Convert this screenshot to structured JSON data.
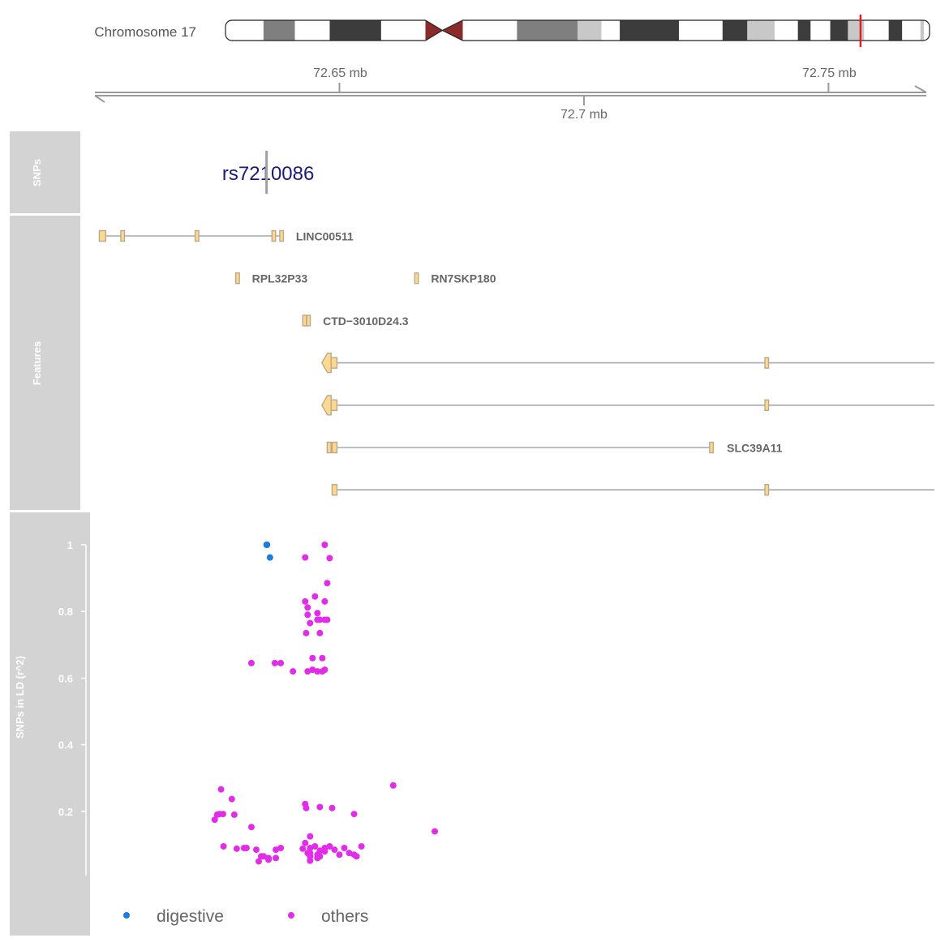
{
  "ideogram": {
    "label": "Chromosome 17",
    "bands": [
      {
        "from": 0,
        "to": 0.054,
        "color": "#ffffff"
      },
      {
        "from": 0.054,
        "to": 0.0985,
        "color": "#7f7f7f"
      },
      {
        "from": 0.0985,
        "to": 0.148,
        "color": "#ffffff"
      },
      {
        "from": 0.148,
        "to": 0.221,
        "color": "#3c3c3c"
      },
      {
        "from": 0.221,
        "to": 0.284,
        "color": "#ffffff"
      },
      {
        "from": 0.337,
        "to": 0.414,
        "color": "#ffffff"
      },
      {
        "from": 0.414,
        "to": 0.5,
        "color": "#7f7f7f"
      },
      {
        "from": 0.5,
        "to": 0.534,
        "color": "#c8c8c8"
      },
      {
        "from": 0.534,
        "to": 0.56,
        "color": "#ffffff"
      },
      {
        "from": 0.56,
        "to": 0.644,
        "color": "#3c3c3c"
      },
      {
        "from": 0.644,
        "to": 0.706,
        "color": "#ffffff"
      },
      {
        "from": 0.706,
        "to": 0.741,
        "color": "#3c3c3c"
      },
      {
        "from": 0.741,
        "to": 0.78,
        "color": "#c8c8c8"
      },
      {
        "from": 0.78,
        "to": 0.813,
        "color": "#ffffff"
      },
      {
        "from": 0.813,
        "to": 0.831,
        "color": "#3c3c3c"
      },
      {
        "from": 0.831,
        "to": 0.859,
        "color": "#ffffff"
      },
      {
        "from": 0.859,
        "to": 0.884,
        "color": "#3c3c3c"
      },
      {
        "from": 0.884,
        "to": 0.907,
        "color": "#c8c8c8"
      },
      {
        "from": 0.907,
        "to": 0.942,
        "color": "#ffffff"
      },
      {
        "from": 0.942,
        "to": 0.961,
        "color": "#3c3c3c"
      },
      {
        "from": 0.961,
        "to": 0.987,
        "color": "#ffffff"
      },
      {
        "from": 0.987,
        "to": 0.992,
        "color": "#c8c8c8"
      },
      {
        "from": 0.992,
        "to": 1,
        "color": "#ffffff"
      }
    ],
    "centromere": {
      "from": 0.284,
      "mid": 0.308,
      "to": 0.337,
      "color": "#8b2a2a"
    },
    "highlight": {
      "at": 0.902,
      "color": "#e02020"
    }
  },
  "axis": {
    "xlim": [
      72.6,
      72.77
    ],
    "upper_ticks": [
      {
        "value": 72.65,
        "label": "72.65 mb"
      },
      {
        "value": 72.75,
        "label": "72.75 mb"
      }
    ],
    "lower_ticks": [
      {
        "value": 72.7,
        "label": "72.7 mb"
      }
    ]
  },
  "tracks": {
    "snps_title": "SNPs",
    "features_title": "Features",
    "ld_title": "SNPs in LD (r^2)"
  },
  "snp_marker": {
    "label": "rs7210086",
    "pos": 72.6351,
    "color": "#1a1a7a"
  },
  "features": {
    "exon_fill": "#ffd88f",
    "exon_stroke": "#b9a98c",
    "intron_color": "#a8a8a8",
    "transcripts": [
      {
        "row": 0,
        "start": 72.6009,
        "end": 72.6383,
        "label": "LINC00511",
        "strand": "+",
        "exons": [
          [
            72.6009,
            72.6022
          ],
          [
            72.6053,
            72.606
          ],
          [
            72.6205,
            72.621
          ],
          [
            72.6362,
            72.6369
          ],
          [
            72.6378,
            72.6383
          ]
        ]
      },
      {
        "row": 1,
        "start": 72.6288,
        "end": 72.6293,
        "label": "RPL32P33",
        "strand": "+",
        "exons": [
          [
            72.6288,
            72.6293
          ]
        ]
      },
      {
        "row": 1,
        "start": 72.6654,
        "end": 72.6659,
        "label": "RN7SKP180",
        "strand": "+",
        "exons": [
          [
            72.6654,
            72.6659
          ]
        ]
      },
      {
        "row": 2,
        "start": 72.6425,
        "end": 72.6438,
        "label": "CTD−3010D24.3",
        "strand": "+",
        "exons": [
          [
            72.6425,
            72.643
          ],
          [
            72.6433,
            72.6438
          ]
        ]
      },
      {
        "row": 3,
        "start": 72.6464,
        "end": 72.772,
        "label": "",
        "strand": "-",
        "exons": [
          [
            72.6464,
            72.6483
          ],
          [
            72.6483,
            72.6495
          ],
          [
            72.737,
            72.7376
          ]
        ]
      },
      {
        "row": 4,
        "start": 72.6464,
        "end": 72.772,
        "label": "",
        "strand": "-",
        "exons": [
          [
            72.6464,
            72.6483
          ],
          [
            72.6483,
            72.6495
          ],
          [
            72.737,
            72.7376
          ]
        ]
      },
      {
        "row": 5,
        "start": 72.6475,
        "end": 72.7264,
        "label": "SLC39A11",
        "strand": "+",
        "exons": [
          [
            72.6475,
            72.6483
          ],
          [
            72.6485,
            72.6495
          ],
          [
            72.7257,
            72.7264
          ]
        ]
      },
      {
        "row": 6,
        "start": 72.6485,
        "end": 72.772,
        "label": "",
        "strand": "+",
        "exons": [
          [
            72.6485,
            72.6495
          ],
          [
            72.737,
            72.7376
          ]
        ]
      }
    ]
  },
  "chart_data": {
    "type": "scatter",
    "title": "",
    "xlabel": "",
    "ylabel": "SNPs in LD (r^2)",
    "ylim": [
      0,
      1.05
    ],
    "y_ticks": [
      "0.2",
      "0.4",
      "0.6",
      "0.8",
      "1"
    ],
    "grid": false,
    "legend_position": "bottom",
    "series": [
      {
        "name": "digestive",
        "color": "#1e7be0",
        "x": [
          72.6351,
          72.6352,
          72.6358
        ],
        "y": [
          1.0,
          1.0,
          0.962
        ]
      },
      {
        "name": "others",
        "color": "#e22de8",
        "x": [
          72.647,
          72.648,
          72.643,
          72.6475,
          72.643,
          72.645,
          72.647,
          72.6455,
          72.646,
          72.6475,
          72.6435,
          72.6435,
          72.644,
          72.6455,
          72.647,
          72.646,
          72.6432,
          72.632,
          72.6368,
          72.638,
          72.6405,
          72.6445,
          72.6465,
          72.6435,
          72.6445,
          72.6455,
          72.6465,
          72.647,
          72.6258,
          72.628,
          72.6255,
          72.6262,
          72.625,
          72.6245,
          72.6285,
          72.632,
          72.643,
          72.6432,
          72.646,
          72.6485,
          72.653,
          72.661,
          72.6695,
          72.631,
          72.643,
          72.644,
          72.647,
          72.6263,
          72.629,
          72.6305,
          72.633,
          72.634,
          72.6355,
          72.637,
          72.638,
          72.6425,
          72.6435,
          72.644,
          72.645,
          72.6455,
          72.646,
          72.647,
          72.648,
          72.649,
          72.651,
          72.653,
          72.6545,
          72.6355,
          72.637,
          72.644,
          72.6455,
          72.65,
          72.652,
          72.6345,
          72.644,
          72.646,
          72.6335,
          72.644,
          72.6455,
          72.6535
        ],
        "y": [
          1.0,
          0.96,
          0.962,
          0.885,
          0.83,
          0.845,
          0.83,
          0.795,
          0.775,
          0.775,
          0.812,
          0.79,
          0.765,
          0.775,
          0.775,
          0.735,
          0.735,
          0.645,
          0.645,
          0.645,
          0.62,
          0.66,
          0.66,
          0.62,
          0.625,
          0.62,
          0.62,
          0.625,
          0.266,
          0.237,
          0.192,
          0.192,
          0.19,
          0.175,
          0.19,
          0.153,
          0.222,
          0.21,
          0.213,
          0.21,
          0.192,
          0.278,
          0.14,
          0.09,
          0.105,
          0.125,
          0.09,
          0.095,
          0.088,
          0.09,
          0.085,
          0.065,
          0.06,
          0.085,
          0.09,
          0.088,
          0.075,
          0.09,
          0.095,
          0.07,
          0.082,
          0.08,
          0.095,
          0.085,
          0.09,
          0.07,
          0.095,
          0.055,
          0.06,
          0.065,
          0.06,
          0.07,
          0.075,
          0.065,
          0.075,
          0.065,
          0.05,
          0.052,
          0.06,
          0.065
        ]
      }
    ]
  }
}
